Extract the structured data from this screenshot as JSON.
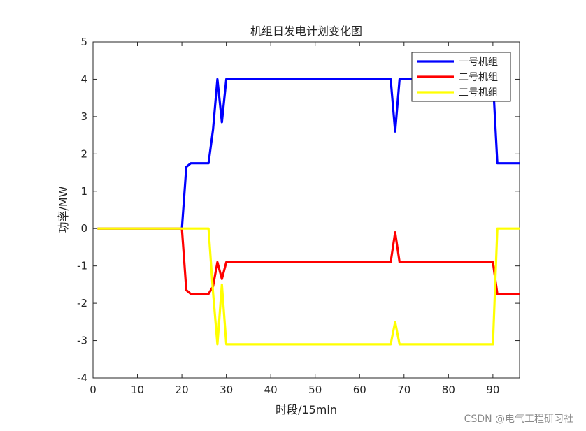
{
  "chart_data": {
    "type": "line",
    "title": "机组日发电计划变化图",
    "xlabel": "时段/15min",
    "ylabel": "功率/MW",
    "xlim": [
      0,
      96
    ],
    "ylim": [
      -4,
      5
    ],
    "xticks": [
      0,
      10,
      20,
      30,
      40,
      50,
      60,
      70,
      80,
      90
    ],
    "yticks": [
      -4,
      -3,
      -2,
      -1,
      0,
      1,
      2,
      3,
      4,
      5
    ],
    "grid": false,
    "legend_position": "top-right",
    "series": [
      {
        "name": "一号机组",
        "color": "#0000ff",
        "x": [
          1,
          20,
          21,
          22,
          26,
          27,
          28,
          29,
          30,
          67,
          68,
          69,
          90,
          91,
          96
        ],
        "y": [
          0,
          0,
          1.65,
          1.75,
          1.75,
          2.65,
          4.0,
          2.85,
          4.0,
          4.0,
          2.6,
          4.0,
          4.0,
          1.75,
          1.75
        ]
      },
      {
        "name": "二号机组",
        "color": "#ff0000",
        "x": [
          1,
          20,
          21,
          22,
          26,
          27,
          28,
          29,
          30,
          67,
          68,
          69,
          90,
          91,
          96
        ],
        "y": [
          0,
          0,
          -1.65,
          -1.75,
          -1.75,
          -1.55,
          -0.9,
          -1.35,
          -0.9,
          -0.9,
          -0.1,
          -0.9,
          -0.9,
          -1.75,
          -1.75
        ]
      },
      {
        "name": "三号机组",
        "color": "#ffff00",
        "x": [
          1,
          26,
          27,
          28,
          29,
          30,
          67,
          68,
          69,
          90,
          91,
          96
        ],
        "y": [
          0,
          0,
          -1.7,
          -3.1,
          -1.5,
          -3.1,
          -3.1,
          -2.5,
          -3.1,
          -3.1,
          0,
          0
        ]
      }
    ]
  },
  "watermark": "CSDN @电气工程研习社"
}
